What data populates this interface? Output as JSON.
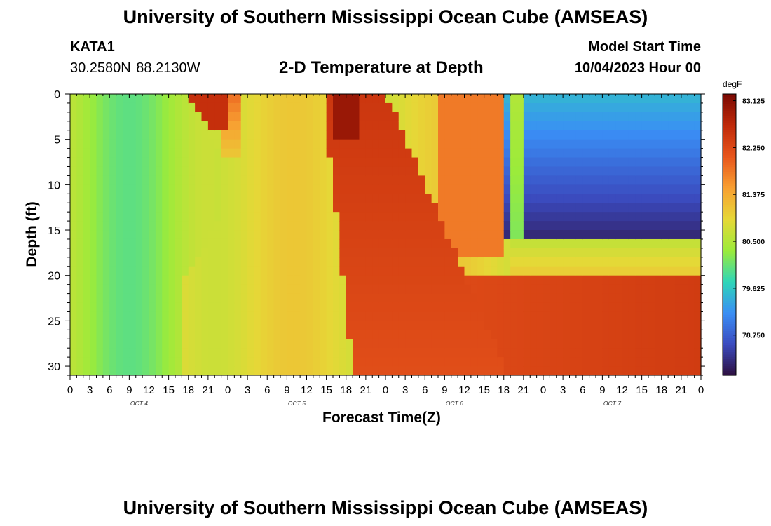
{
  "header": {
    "title": "University of Southern Mississippi Ocean Cube (AMSEAS)",
    "station_id": "KATA1",
    "coordinates": "30.2580N  88.2130W",
    "chart_title": "2-D Temperature at Depth",
    "start_label": "Model Start Time",
    "start_value": "10/04/2023 Hour 00"
  },
  "footer": {
    "title": "University of Southern Mississippi Ocean Cube (AMSEAS)"
  },
  "chart_data": {
    "type": "heatmap",
    "title": "2-D Temperature at Depth",
    "xlabel": "Forecast Time(Z)",
    "ylabel": "Depth (ft)",
    "x_tick_labels": [
      "0",
      "3",
      "6",
      "9",
      "12",
      "15",
      "18",
      "21",
      "0",
      "3",
      "6",
      "9",
      "12",
      "15",
      "18",
      "21",
      "0",
      "3",
      "6",
      "9",
      "12",
      "15",
      "18",
      "21",
      "0",
      "3",
      "6",
      "9",
      "12",
      "15",
      "18",
      "21",
      "0"
    ],
    "x_day_labels": [
      "OCT 4",
      "OCT 5",
      "OCT 6",
      "OCT 7"
    ],
    "xlim": [
      0,
      96
    ],
    "y_ticks": [
      0,
      5,
      10,
      15,
      20,
      25,
      30
    ],
    "ylim": [
      0,
      31
    ],
    "y_inverted": true,
    "colorbar": {
      "unit": "degF",
      "min": 78.0,
      "max": 83.25,
      "tick_values": [
        83.125,
        82.25,
        81.375,
        80.5,
        79.625,
        78.75
      ],
      "tick_labels": [
        "83.125",
        "82.250",
        "81.375",
        "80.500",
        "79.625",
        "78.750"
      ],
      "colors": [
        "#2e0f3f",
        "#3b4bbf",
        "#3a8ef5",
        "#2ed6b8",
        "#9ceb3a",
        "#e6d837",
        "#f8a032",
        "#e8561c",
        "#c02a0a",
        "#7b0a03"
      ]
    },
    "grid": false,
    "legend": "colorbar-right"
  }
}
